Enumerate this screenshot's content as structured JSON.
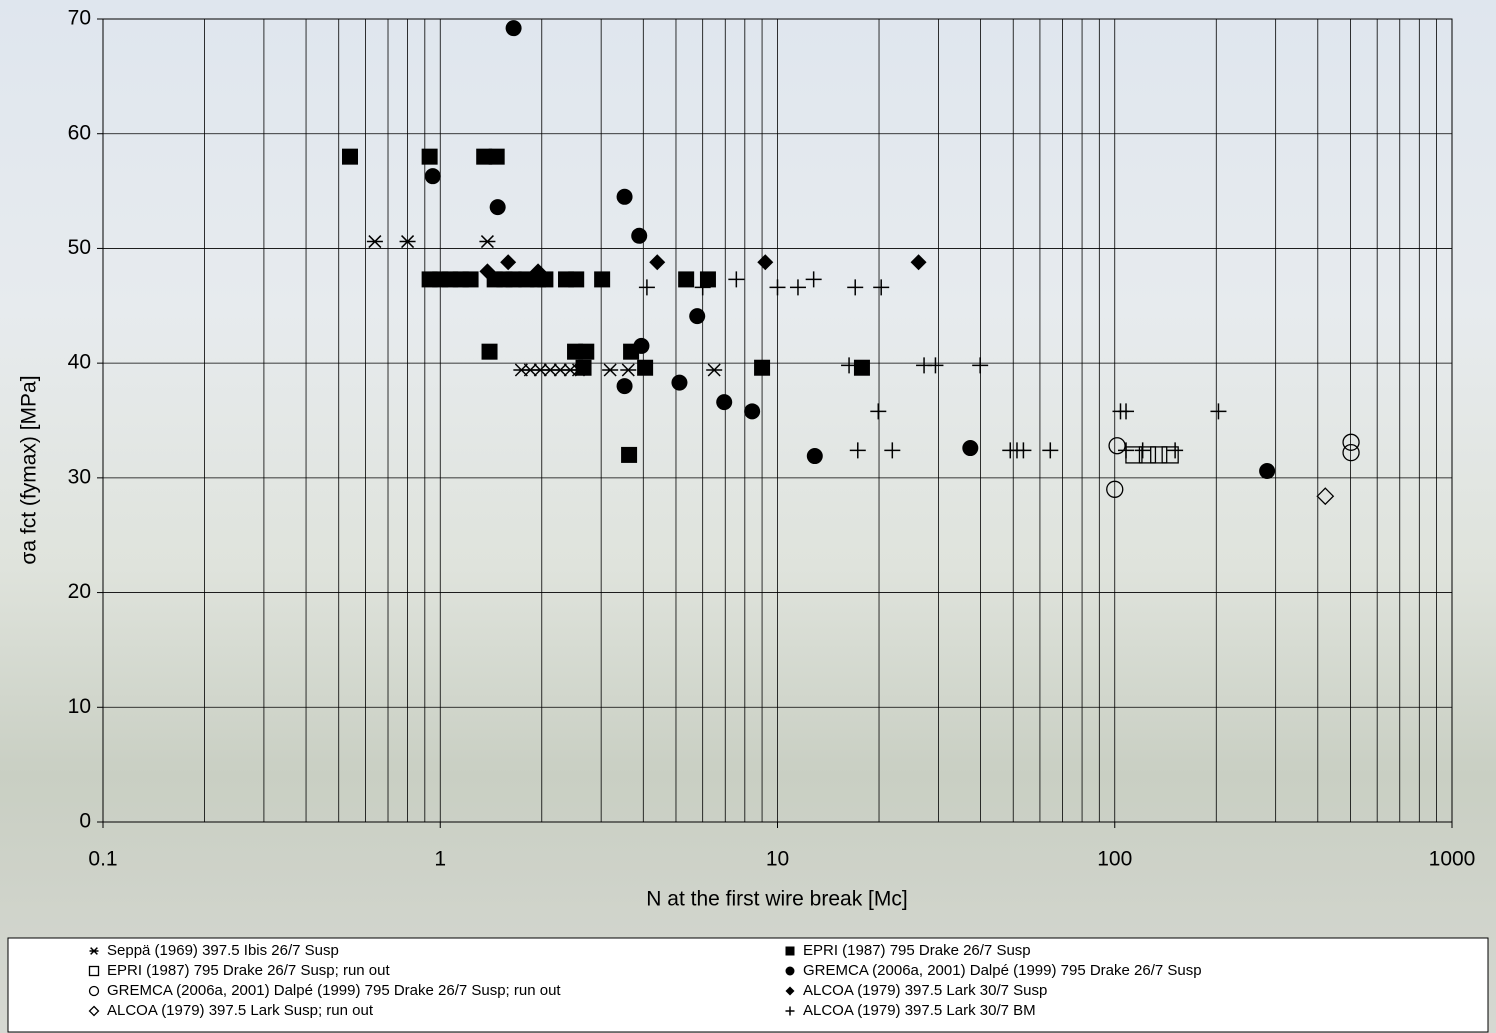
{
  "chart_data": {
    "type": "scatter",
    "x_label": "N at the first wire break [Mc]",
    "y_label": "σa fct (fymax) [MPa]",
    "xlim": [
      0.1,
      1000
    ],
    "xticks": [
      0.1,
      1,
      10,
      100,
      1000
    ],
    "xscale": "log",
    "ylim": [
      0,
      70
    ],
    "yticks": [
      0,
      10,
      20,
      30,
      40,
      50,
      60,
      70
    ],
    "grid": true,
    "minor_grid": true,
    "series": [
      {
        "name": "Seppä (1969) 397.5  Ibis 26/7 Susp",
        "marker": "asterisk",
        "color": "#000000",
        "x": [
          0.64,
          0.8,
          1.38,
          1.74,
          1.85,
          1.98,
          2.12,
          2.27,
          2.43,
          2.57,
          3.19,
          3.61,
          6.49
        ],
        "y": [
          50.6,
          50.6,
          50.6,
          39.4,
          39.4,
          39.4,
          39.4,
          39.4,
          39.4,
          39.4,
          39.4,
          39.4,
          39.4
        ]
      },
      {
        "name": "EPRI (1987) 795 Drake 26/7 Susp",
        "marker": "square",
        "color": "#000000",
        "x": [
          0.54,
          0.93,
          1.35,
          1.47,
          0.93,
          1.0,
          1.07,
          1.15,
          1.23,
          1.45,
          1.55,
          1.65,
          1.8,
          1.95,
          2.05,
          2.36,
          2.53,
          3.02,
          5.36,
          6.22,
          1.4,
          2.51,
          2.71,
          3.68,
          2.66,
          4.05,
          9.0,
          17.8,
          3.63
        ],
        "y": [
          58,
          58,
          58,
          58,
          47.3,
          47.3,
          47.3,
          47.3,
          47.3,
          47.3,
          47.3,
          47.3,
          47.3,
          47.3,
          47.3,
          47.3,
          47.3,
          47.3,
          47.3,
          47.3,
          41,
          41,
          41,
          41,
          39.6,
          39.6,
          39.6,
          39.6,
          32
        ]
      },
      {
        "name": "EPRI (1987) 795 Drake 26/7 Susp; run out",
        "marker": "square-open",
        "color": "#000000",
        "x": [
          114,
          125,
          135,
          146
        ],
        "y": [
          32,
          32,
          32,
          32
        ]
      },
      {
        "name": "GREMCA (2006a, 2001) Dalpé (1999) 795 Drake 26/7 Susp",
        "marker": "circle",
        "color": "#000000",
        "x": [
          1.65,
          0.95,
          1.48,
          3.52,
          3.89,
          5.78,
          3.95,
          3.52,
          5.12,
          6.95,
          8.41,
          12.9,
          37.3,
          283
        ],
        "y": [
          69.2,
          56.3,
          53.6,
          54.5,
          51.1,
          44.1,
          41.5,
          38,
          38.3,
          36.6,
          35.8,
          31.9,
          32.6,
          30.6
        ]
      },
      {
        "name": "GREMCA (2006a, 2001) Dalpé (1999) 795 Drake 26/7 Susp; run out",
        "marker": "circle-open",
        "color": "#000000",
        "x": [
          101.6,
          100,
          502,
          502
        ],
        "y": [
          32.8,
          29,
          33.1,
          32.2
        ]
      },
      {
        "name": "ALCOA (1979) 397.5 Lark 30/7 Susp",
        "marker": "diamond",
        "color": "#000000",
        "x": [
          1.38,
          1.59,
          1.95,
          4.4,
          9.2,
          26.2
        ],
        "y": [
          48,
          48.8,
          48,
          48.8,
          48.8,
          48.8
        ]
      },
      {
        "name": "ALCOA (1979) 397.5 Lark Susp; run out",
        "marker": "diamond-open",
        "color": "#000000",
        "x": [
          421
        ],
        "y": [
          28.4
        ]
      },
      {
        "name": "ALCOA (1979) 397.5 Lark 30/7 BM",
        "marker": "plus",
        "color": "#000000",
        "x": [
          4.1,
          6.0,
          7.55,
          10.0,
          11.5,
          12.8,
          17.0,
          20.3,
          16.3,
          27.2,
          29.4,
          39.9,
          19.9,
          104,
          108,
          203,
          17.3,
          21.9,
          49,
          51.3,
          53.6,
          64.4,
          108,
          121,
          151
        ],
        "y": [
          46.6,
          46.6,
          47.3,
          46.6,
          46.6,
          47.3,
          46.6,
          46.6,
          39.8,
          39.8,
          39.8,
          39.8,
          35.8,
          35.8,
          35.8,
          35.8,
          32.4,
          32.4,
          32.4,
          32.4,
          32.4,
          32.4,
          32.4,
          32.4,
          32.4
        ]
      }
    ]
  }
}
